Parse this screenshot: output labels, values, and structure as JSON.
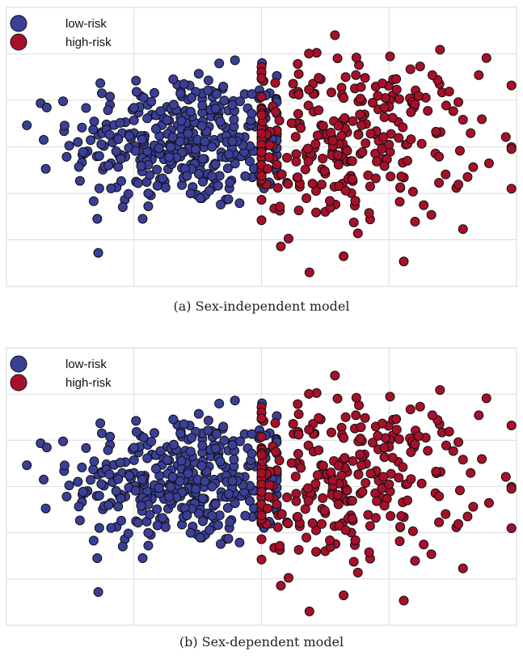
{
  "colors": {
    "low_risk": "#3a3f98",
    "high_risk": "#a8102a",
    "grid": "#dcdcdc",
    "frame": "#d6d6d6"
  },
  "chart_data": [
    {
      "type": "scatter",
      "caption": "(a) Sex-independent model",
      "legend": {
        "placement": "top-left",
        "entries": [
          "low-risk",
          "high-risk"
        ]
      },
      "grid": true,
      "xlim": [
        0,
        100
      ],
      "ylim": [
        0,
        100
      ],
      "title": "",
      "xlabel": "",
      "ylabel": "",
      "series": [
        {
          "name": "low-risk",
          "color": "#3a3f98",
          "points": []
        },
        {
          "name": "high-risk",
          "color": "#a8102a",
          "points": []
        }
      ]
    },
    {
      "type": "scatter",
      "caption": "(b) Sex-dependent model",
      "legend": {
        "placement": "top-left",
        "entries": [
          "low-risk",
          "high-risk"
        ]
      },
      "grid": true,
      "xlim": [
        0,
        100
      ],
      "ylim": [
        0,
        100
      ],
      "title": "",
      "xlabel": "",
      "ylabel": "",
      "series": [
        {
          "name": "low-risk",
          "color": "#3a3f98",
          "points": []
        },
        {
          "name": "high-risk",
          "color": "#a8102a",
          "points": []
        }
      ]
    }
  ]
}
